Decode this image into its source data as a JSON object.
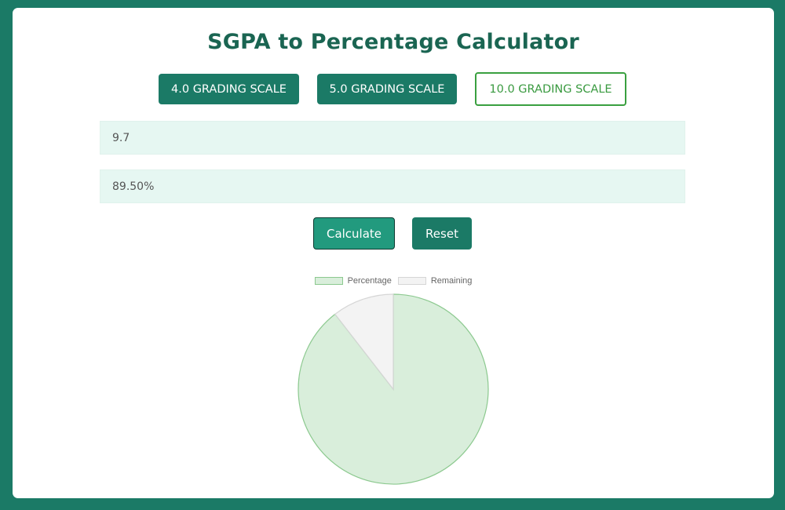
{
  "header": {
    "title": "SGPA to Percentage Calculator"
  },
  "scales": [
    {
      "label": "4.0 GRADING SCALE",
      "active": false
    },
    {
      "label": "5.0 GRADING SCALE",
      "active": false
    },
    {
      "label": "10.0 GRADING SCALE",
      "active": true
    }
  ],
  "inputs": {
    "sgpa_value": "9.7",
    "percentage_value": "89.50%"
  },
  "actions": {
    "calculate_label": "Calculate",
    "reset_label": "Reset"
  },
  "colors": {
    "frame": "#1b7a66",
    "title": "#1a6552",
    "button": "#1b7a66",
    "active_outline": "#3aa040",
    "input_bg": "#e6f7f2",
    "percentage_fill": "#d9eedb",
    "percentage_border": "#8cc98f",
    "remaining_fill": "#f3f3f3",
    "remaining_border": "#d6d6d6"
  },
  "chart_data": {
    "type": "pie",
    "title": "",
    "categories": [
      "Percentage",
      "Remaining"
    ],
    "values": [
      89.5,
      10.5
    ],
    "legend": [
      "Percentage",
      "Remaining"
    ],
    "legend_position": "top"
  }
}
